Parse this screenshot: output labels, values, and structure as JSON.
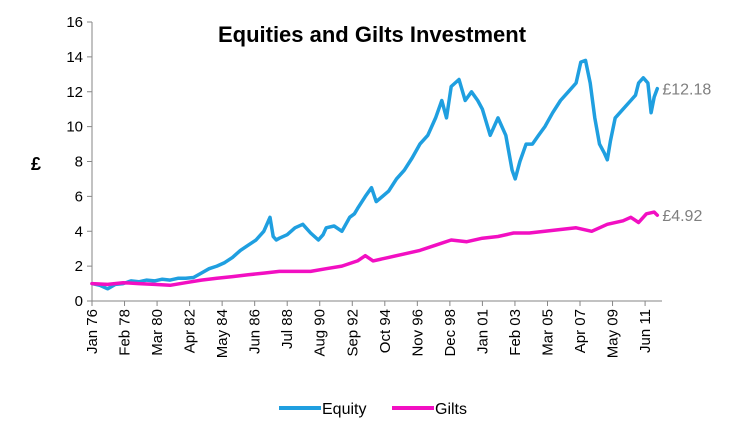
{
  "chart_data": {
    "type": "line",
    "title": "Equities and Gilts Investment",
    "ylabel": "£",
    "xlabel": "",
    "ylim": [
      0,
      16
    ],
    "yticks": [
      0,
      2,
      4,
      6,
      8,
      10,
      12,
      14,
      16
    ],
    "xlim": [
      1976.0,
      2012.5
    ],
    "grid": false,
    "legend_placement": "bottom",
    "x_tick_labels": [
      "Jan 76",
      "Feb 78",
      "Mar 80",
      "Apr 82",
      "May 84",
      "Jun 86",
      "Jul 88",
      "Aug 90",
      "Sep 92",
      "Oct 94",
      "Nov 96",
      "Dec 98",
      "Jan 01",
      "Feb 03",
      "Mar 05",
      "Apr 07",
      "May 09",
      "Jun 11"
    ],
    "x_tick_positions": [
      1976.0,
      1978.083,
      1980.167,
      1982.25,
      1984.333,
      1986.417,
      1988.5,
      1990.583,
      1992.667,
      1994.75,
      1996.833,
      1998.917,
      2001.0,
      2003.083,
      2005.167,
      2007.25,
      2009.333,
      2011.417
    ],
    "series": [
      {
        "name": "Equity",
        "color": "#1f9fe0",
        "end_label": "£12.18",
        "x": [
          1976.0,
          1976.5,
          1977.0,
          1977.5,
          1978.0,
          1978.5,
          1979.0,
          1979.5,
          1980.0,
          1980.5,
          1981.0,
          1981.5,
          1982.0,
          1982.5,
          1983.0,
          1983.5,
          1984.0,
          1984.5,
          1985.0,
          1985.5,
          1986.0,
          1986.5,
          1987.0,
          1987.4,
          1987.6,
          1987.8,
          1988.0,
          1988.5,
          1989.0,
          1989.5,
          1990.0,
          1990.5,
          1990.8,
          1991.0,
          1991.5,
          1992.0,
          1992.5,
          1992.8,
          1993.0,
          1993.5,
          1993.9,
          1994.2,
          1994.6,
          1995.0,
          1995.5,
          1996.0,
          1996.5,
          1997.0,
          1997.5,
          1998.0,
          1998.4,
          1998.7,
          1999.0,
          1999.5,
          1999.9,
          2000.3,
          2000.7,
          2001.0,
          2001.5,
          2002.0,
          2002.5,
          2002.9,
          2003.1,
          2003.4,
          2003.8,
          2004.2,
          2004.6,
          2005.0,
          2005.5,
          2006.0,
          2006.5,
          2007.0,
          2007.3,
          2007.6,
          2007.9,
          2008.2,
          2008.5,
          2008.8,
          2009.0,
          2009.2,
          2009.5,
          2010.0,
          2010.5,
          2010.8,
          2011.0,
          2011.3,
          2011.6,
          2011.8,
          2012.0,
          2012.2
        ],
        "values": [
          1.0,
          0.9,
          0.7,
          0.95,
          1.0,
          1.15,
          1.1,
          1.2,
          1.15,
          1.25,
          1.2,
          1.3,
          1.3,
          1.35,
          1.6,
          1.85,
          2.0,
          2.2,
          2.5,
          2.9,
          3.2,
          3.5,
          4.0,
          4.8,
          3.7,
          3.5,
          3.6,
          3.8,
          4.2,
          4.4,
          3.9,
          3.5,
          3.8,
          4.2,
          4.3,
          4.0,
          4.8,
          5.0,
          5.3,
          6.0,
          6.5,
          5.7,
          6.0,
          6.3,
          7.0,
          7.5,
          8.2,
          9.0,
          9.5,
          10.5,
          11.5,
          10.5,
          12.3,
          12.7,
          11.5,
          12.0,
          11.5,
          11.0,
          9.5,
          10.5,
          9.5,
          7.5,
          7.0,
          8.0,
          9.0,
          9.0,
          9.5,
          10.0,
          10.8,
          11.5,
          12.0,
          12.5,
          13.7,
          13.8,
          12.5,
          10.5,
          9.0,
          8.5,
          8.1,
          9.2,
          10.5,
          11.0,
          11.5,
          11.8,
          12.5,
          12.8,
          12.5,
          10.8,
          11.7,
          12.18
        ]
      },
      {
        "name": "Gilts",
        "color": "#f20fc2",
        "end_label": "£4.92",
        "x": [
          1976.0,
          1977.0,
          1978.0,
          1979.0,
          1980.0,
          1981.0,
          1982.0,
          1983.0,
          1984.0,
          1985.0,
          1986.0,
          1987.0,
          1988.0,
          1989.0,
          1990.0,
          1991.0,
          1992.0,
          1993.0,
          1993.5,
          1994.0,
          1995.0,
          1996.0,
          1997.0,
          1998.0,
          1999.0,
          2000.0,
          2001.0,
          2002.0,
          2003.0,
          2004.0,
          2005.0,
          2006.0,
          2007.0,
          2008.0,
          2009.0,
          2010.0,
          2010.5,
          2011.0,
          2011.5,
          2012.0,
          2012.2
        ],
        "values": [
          1.0,
          0.95,
          1.05,
          1.0,
          0.95,
          0.9,
          1.05,
          1.2,
          1.3,
          1.4,
          1.5,
          1.6,
          1.7,
          1.7,
          1.7,
          1.85,
          2.0,
          2.3,
          2.6,
          2.3,
          2.5,
          2.7,
          2.9,
          3.2,
          3.5,
          3.4,
          3.6,
          3.7,
          3.9,
          3.9,
          4.0,
          4.1,
          4.2,
          4.0,
          4.4,
          4.6,
          4.8,
          4.5,
          5.0,
          5.1,
          4.92
        ]
      }
    ]
  }
}
